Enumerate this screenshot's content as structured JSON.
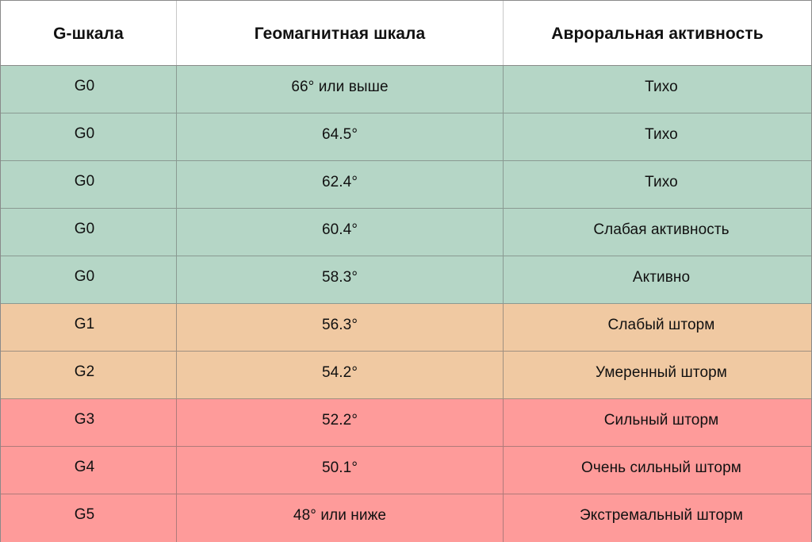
{
  "table": {
    "headers": {
      "g_scale": "G-шкала",
      "geomagnetic": "Геомагнитная шкала",
      "auroral": "Авроральная активность"
    },
    "colors": {
      "quiet": "#B5D6C6",
      "moderate": "#F0C9A2",
      "severe": "#FE9B9A"
    },
    "rows": [
      {
        "g": "G0",
        "latitude": "66° или выше",
        "activity": "Тихо",
        "level": "quiet"
      },
      {
        "g": "G0",
        "latitude": "64.5°",
        "activity": "Тихо",
        "level": "quiet"
      },
      {
        "g": "G0",
        "latitude": "62.4°",
        "activity": "Тихо",
        "level": "quiet"
      },
      {
        "g": "G0",
        "latitude": "60.4°",
        "activity": "Слабая активность",
        "level": "quiet"
      },
      {
        "g": "G0",
        "latitude": "58.3°",
        "activity": "Активно",
        "level": "quiet"
      },
      {
        "g": "G1",
        "latitude": "56.3°",
        "activity": "Слабый шторм",
        "level": "moderate"
      },
      {
        "g": "G2",
        "latitude": "54.2°",
        "activity": "Умеренный шторм",
        "level": "moderate"
      },
      {
        "g": "G3",
        "latitude": "52.2°",
        "activity": "Сильный шторм",
        "level": "severe"
      },
      {
        "g": "G4",
        "latitude": "50.1°",
        "activity": "Очень сильный шторм",
        "level": "severe"
      },
      {
        "g": "G5",
        "latitude": "48° или ниже",
        "activity": "Экстремальный шторм",
        "level": "severe"
      }
    ]
  }
}
